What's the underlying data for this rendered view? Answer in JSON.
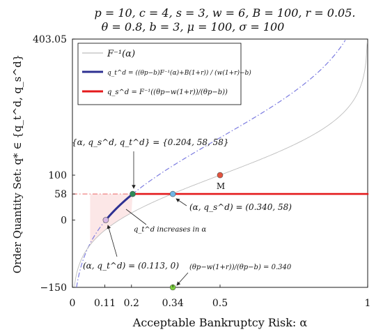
{
  "chart_data": {
    "type": "line",
    "title": "p = 10, c = 4, s = 3, w = 6, B = 100, r = 0.05.",
    "subtitle": "θ = 0.8, b = 3, μ = 100, σ = 100",
    "xlabel": "Acceptable Bankruptcy Risk: α",
    "ylabel": "Order Quantity Set: q* ∈ {q_t^d, q_s^d}",
    "xlim": [
      0,
      1
    ],
    "ylim": [
      -150,
      403.05
    ],
    "x_ticks": [
      {
        "value": 0,
        "label": "0"
      },
      {
        "value": 0.11,
        "label": "0.11"
      },
      {
        "value": 0.2,
        "label": "0.2"
      },
      {
        "value": 0.34,
        "label": "0.34"
      },
      {
        "value": 0.5,
        "label": "0.5"
      },
      {
        "value": 1,
        "label": "1"
      }
    ],
    "y_ticks": [
      {
        "value": 403.05,
        "label": "403.05"
      },
      {
        "value": 100,
        "label": "100"
      },
      {
        "value": 58,
        "label": "58"
      },
      {
        "value": 0,
        "label": "0"
      },
      {
        "value": -150,
        "label": "−150"
      }
    ],
    "dist": {
      "mu": 100,
      "sigma": 100
    },
    "params": {
      "theta": 0.8,
      "p": 10,
      "b": 3,
      "w": 6,
      "B": 100,
      "r": 0.05
    },
    "series": [
      {
        "name": "F⁻¹(α)",
        "kind": "inverse-cdf",
        "color": "#bdbdbd"
      },
      {
        "name": "q_t^d = ((θp−b)F⁻¹(α)+B(1+r)) / (w(1+r)−b)",
        "kind": "qt",
        "color": "#2e3192",
        "x_range": [
          0.113,
          0.204
        ]
      },
      {
        "name": "q_s^d = F⁻¹((θp−w(1+r))/(θp−b))",
        "kind": "const",
        "value": 58,
        "color": "#e41a1c",
        "x_range": [
          0.204,
          1
        ]
      }
    ],
    "unlabeled_lines": [
      {
        "kind": "qt",
        "style": "dashdot",
        "color": "#7b7be0"
      },
      {
        "kind": "const",
        "value": 58,
        "style": "dashdot",
        "color": "#f08080",
        "x_range": [
          0,
          0.204
        ]
      }
    ],
    "points": [
      {
        "x": 0.204,
        "y": 58,
        "color": "#2e8b57"
      },
      {
        "x": 0.34,
        "y": 58,
        "color": "#6fb6e6"
      },
      {
        "x": 0.113,
        "y": 0,
        "color": "#d7b8e6"
      },
      {
        "x": 0.5,
        "y": 100,
        "color": "#e2533f"
      },
      {
        "x": 0.34,
        "y": -150,
        "color": "#7ccf3f"
      }
    ],
    "annotations": [
      {
        "text": "{α, q_s^d, q_t^d} = {0.204, 58, 58}"
      },
      {
        "text": "(α, q_s^d) = (0.340, 58)"
      },
      {
        "text": "q_t^d increases in α"
      },
      {
        "text": "(α, q_t^d) = (0.113, 0)"
      },
      {
        "text": "(θp−w(1+r))/(θp−b) = 0.340"
      },
      {
        "text": "M"
      }
    ]
  }
}
